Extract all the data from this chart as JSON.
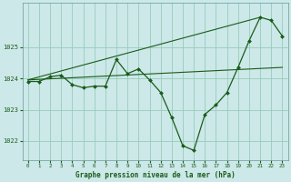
{
  "title": "Graphe pression niveau de la mer (hPa)",
  "bg_color": "#cce8e8",
  "grid_color": "#99ccbb",
  "line_color": "#1a5c1a",
  "marker_color": "#1a5c1a",
  "xlim": [
    -0.5,
    23.5
  ],
  "ylim": [
    1021.4,
    1026.4
  ],
  "yticks": [
    1022,
    1023,
    1024,
    1025
  ],
  "xticks": [
    0,
    1,
    2,
    3,
    4,
    5,
    6,
    7,
    8,
    9,
    10,
    11,
    12,
    13,
    14,
    15,
    16,
    17,
    18,
    19,
    20,
    21,
    22,
    23
  ],
  "hours": [
    0,
    1,
    2,
    3,
    4,
    5,
    6,
    7,
    8,
    9,
    10,
    11,
    12,
    13,
    14,
    15,
    16,
    17,
    18,
    19,
    20,
    21,
    22,
    23
  ],
  "pressure_main": [
    1023.9,
    1023.9,
    1024.05,
    1024.1,
    1023.8,
    1023.7,
    1023.75,
    1023.75,
    1024.6,
    1024.15,
    1024.3,
    1023.95,
    1023.55,
    1022.75,
    1021.85,
    1021.7,
    1022.85,
    1023.15,
    1023.55,
    1024.35,
    1025.2,
    1025.95,
    1025.85,
    1025.35
  ],
  "trend1_x": [
    0,
    23
  ],
  "trend1_y": [
    1023.95,
    1024.35
  ],
  "trend2_x": [
    0,
    21
  ],
  "trend2_y": [
    1023.95,
    1025.95
  ],
  "figwidth": 3.2,
  "figheight": 2.0,
  "dpi": 100
}
